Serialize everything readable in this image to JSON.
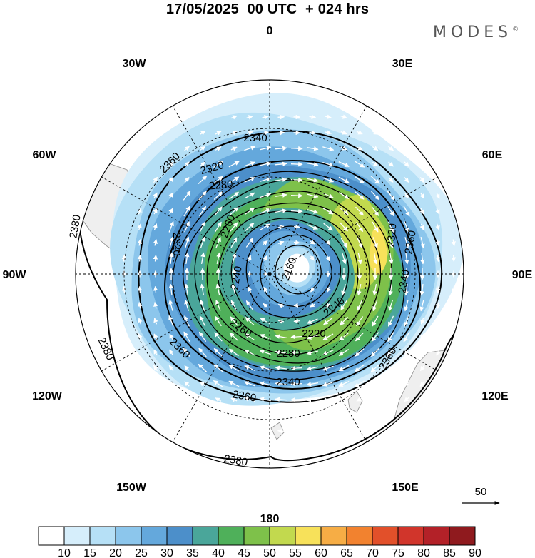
{
  "header": {
    "title": "17/05/2025  00 UTC  + 024 hrs",
    "brand": "MODES",
    "brand_mark": "©"
  },
  "map": {
    "projection": "polar stereographic",
    "hemisphere": "south",
    "longitude_labels": {
      "top": "0",
      "bottom": "180",
      "left": "90W",
      "right": "90E",
      "upper_left_1": "30W",
      "upper_left_2": "60W",
      "upper_right_1": "30E",
      "upper_right_2": "60E",
      "lower_left_1": "120W",
      "lower_left_2": "150W",
      "lower_right_1": "120E",
      "lower_right_2": "150E"
    },
    "contour_labels": [
      "2160",
      "2220",
      "2240",
      "2240",
      "2260",
      "2260",
      "2280",
      "2280",
      "2320",
      "2320",
      "2320",
      "2340",
      "2340",
      "2340",
      "2360",
      "2360",
      "2360",
      "2360",
      "2360",
      "2380",
      "2380",
      "2380"
    ],
    "wind_reference_vector": "50"
  },
  "legend": {
    "ticks": [
      "10",
      "15",
      "20",
      "25",
      "30",
      "35",
      "40",
      "45",
      "50",
      "55",
      "60",
      "65",
      "70",
      "75",
      "80",
      "85",
      "90"
    ],
    "colors": [
      "#ffffff",
      "#d6eefb",
      "#b6e0f6",
      "#8cc6ec",
      "#64a8dc",
      "#4c8fca",
      "#4aa69a",
      "#4fb05a",
      "#7ec14a",
      "#c2d94e",
      "#f7e15a",
      "#f6ad45",
      "#f2822f",
      "#e2502a",
      "#d1352b",
      "#b32128",
      "#8f1a1e"
    ]
  },
  "colors": {
    "land": "#efefef",
    "coast": "#8a8a8a",
    "grid": "#000000",
    "contour": "#000000",
    "vector": "#ffffff"
  }
}
